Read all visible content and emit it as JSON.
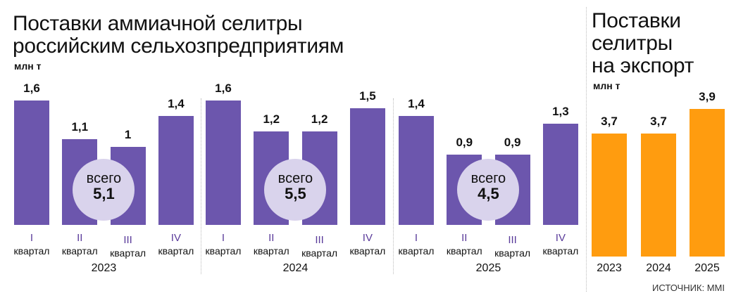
{
  "left": {
    "title_line1": "Поставки аммиачной селитры",
    "title_line2": "российским сельхозпредприятиям",
    "unit": "млн т"
  },
  "right": {
    "title_line1": "Поставки",
    "title_line2": "селитры",
    "title_line3": "на экспорт",
    "unit": "млн т"
  },
  "source": "ИСТОЧНИК: MMI",
  "chart_data": [
    {
      "type": "bar",
      "title": "Поставки аммиачной селитры российским сельхозпредприятиям",
      "ylabel": "млн т",
      "ylim": [
        0,
        1.6
      ],
      "color": "#6c56ad",
      "quarter_word": "квартал",
      "groups": [
        {
          "year": "2023",
          "total_label": "всего",
          "total": "5,1",
          "quarters": [
            {
              "q": "I",
              "value": 1.6,
              "label": "1,6"
            },
            {
              "q": "II",
              "value": 1.1,
              "label": "1,1"
            },
            {
              "q": "III",
              "value": 1.0,
              "label": "1"
            },
            {
              "q": "IV",
              "value": 1.4,
              "label": "1,4"
            }
          ]
        },
        {
          "year": "2024",
          "total_label": "всего",
          "total": "5,5",
          "quarters": [
            {
              "q": "I",
              "value": 1.6,
              "label": "1,6"
            },
            {
              "q": "II",
              "value": 1.2,
              "label": "1,2"
            },
            {
              "q": "III",
              "value": 1.2,
              "label": "1,2"
            },
            {
              "q": "IV",
              "value": 1.5,
              "label": "1,5"
            }
          ]
        },
        {
          "year": "2025",
          "total_label": "всего",
          "total": "4,5",
          "quarters": [
            {
              "q": "I",
              "value": 1.4,
              "label": "1,4"
            },
            {
              "q": "II",
              "value": 0.9,
              "label": "0,9"
            },
            {
              "q": "III",
              "value": 0.9,
              "label": "0,9"
            },
            {
              "q": "IV",
              "value": 1.3,
              "label": "1,3"
            }
          ]
        }
      ],
      "total_circle_color": "#d9d3ec"
    },
    {
      "type": "bar",
      "title": "Поставки селитры на экспорт",
      "ylabel": "млн т",
      "ylim": [
        2.7,
        3.9
      ],
      "color": "#ff9c0f",
      "categories": [
        "2023",
        "2024",
        "2025"
      ],
      "values": [
        3.7,
        3.7,
        3.9
      ],
      "labels": [
        "3,7",
        "3,7",
        "3,9"
      ]
    }
  ]
}
